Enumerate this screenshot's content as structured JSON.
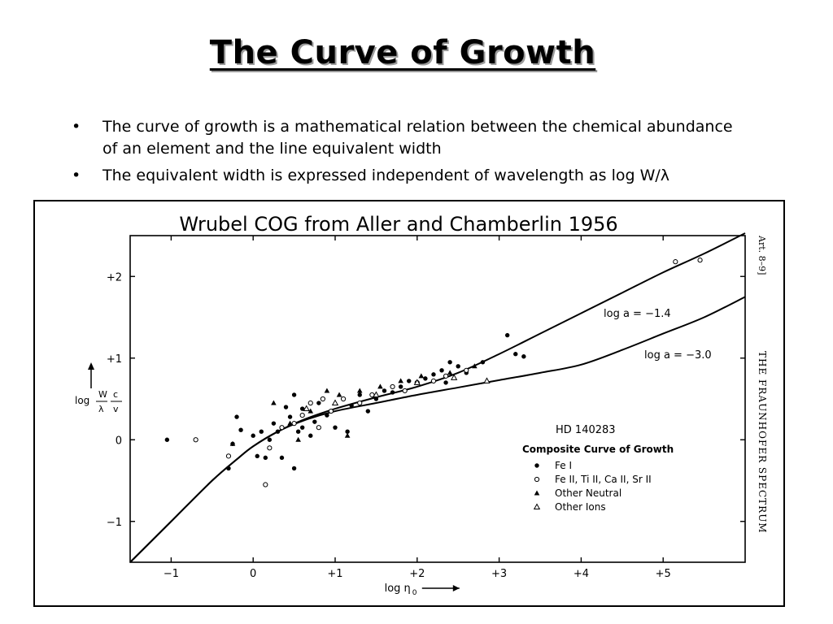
{
  "slide": {
    "title": "The Curve of Growth",
    "bullets": [
      "The curve of growth is a mathematical relation between the chemical abundance of an element and the line equivalent width",
      "The equivalent width is expressed independent of wavelength as log W/λ"
    ],
    "bullet_symbol": "•"
  },
  "figure": {
    "caption": "Wrubel COG from Aller and Chamberlin 1956",
    "side_text_art": "Art. 8–9]",
    "side_text_title": "THE FRAUNHOFER SPECTRUM"
  },
  "chart_data": {
    "type": "scatter",
    "title": "HD 140283",
    "subtitle": "Composite Curve of Growth",
    "xlabel": "log η",
    "xlabel_subscript": "0",
    "ylabel": "log W/λ c/v",
    "ylabel_parts": {
      "prefix": "log",
      "num1": "W",
      "den1": "λ",
      "num2": "c",
      "den2": "v"
    },
    "xlim": [
      -1.5,
      6.0
    ],
    "ylim": [
      -1.5,
      2.5
    ],
    "x_ticks": [
      -1,
      0,
      1,
      2,
      3,
      4,
      5
    ],
    "x_tick_labels": [
      "−1",
      "0",
      "+1",
      "+2",
      "+3",
      "+4",
      "+5"
    ],
    "y_ticks": [
      -1,
      0,
      1,
      2
    ],
    "y_tick_labels": [
      "−1",
      "0",
      "+1",
      "+2"
    ],
    "grid": false,
    "legend_position": "lower-right",
    "curves": [
      {
        "name": "log a = −1.4",
        "points": [
          [
            -1.5,
            -1.5
          ],
          [
            -1.0,
            -1.0
          ],
          [
            -0.5,
            -0.5
          ],
          [
            -0.2,
            -0.24
          ],
          [
            0.0,
            -0.08
          ],
          [
            0.3,
            0.1
          ],
          [
            0.6,
            0.24
          ],
          [
            1.0,
            0.38
          ],
          [
            1.5,
            0.52
          ],
          [
            2.0,
            0.65
          ],
          [
            2.5,
            0.82
          ],
          [
            3.0,
            1.05
          ],
          [
            3.5,
            1.3
          ],
          [
            4.0,
            1.55
          ],
          [
            4.5,
            1.8
          ],
          [
            5.0,
            2.05
          ],
          [
            5.5,
            2.28
          ],
          [
            6.0,
            2.53
          ]
        ]
      },
      {
        "name": "log a = −3.0",
        "points": [
          [
            -1.5,
            -1.5
          ],
          [
            -1.0,
            -1.0
          ],
          [
            -0.5,
            -0.5
          ],
          [
            -0.2,
            -0.24
          ],
          [
            0.0,
            -0.08
          ],
          [
            0.3,
            0.1
          ],
          [
            0.6,
            0.23
          ],
          [
            1.0,
            0.35
          ],
          [
            1.5,
            0.45
          ],
          [
            2.0,
            0.55
          ],
          [
            2.5,
            0.64
          ],
          [
            3.0,
            0.73
          ],
          [
            3.5,
            0.82
          ],
          [
            4.0,
            0.92
          ],
          [
            4.5,
            1.1
          ],
          [
            5.0,
            1.3
          ],
          [
            5.5,
            1.5
          ],
          [
            6.0,
            1.75
          ]
        ]
      }
    ],
    "series": [
      {
        "name": "Fe I",
        "marker": "filled-circle",
        "points": [
          [
            -1.05,
            0.0
          ],
          [
            -0.25,
            -0.05
          ],
          [
            -0.2,
            0.28
          ],
          [
            0.3,
            0.1
          ],
          [
            0.4,
            0.4
          ],
          [
            0.5,
            0.55
          ],
          [
            0.6,
            0.38
          ],
          [
            0.8,
            0.45
          ],
          [
            0.9,
            0.3
          ],
          [
            1.0,
            0.15
          ],
          [
            1.2,
            0.42
          ],
          [
            1.3,
            0.55
          ],
          [
            1.4,
            0.35
          ],
          [
            1.5,
            0.5
          ],
          [
            1.6,
            0.6
          ],
          [
            1.7,
            0.58
          ],
          [
            1.8,
            0.65
          ],
          [
            1.9,
            0.72
          ],
          [
            2.0,
            0.7
          ],
          [
            2.1,
            0.75
          ],
          [
            2.2,
            0.8
          ],
          [
            2.3,
            0.85
          ],
          [
            2.4,
            0.95
          ],
          [
            2.5,
            0.9
          ],
          [
            2.6,
            0.82
          ],
          [
            2.8,
            0.95
          ],
          [
            3.1,
            1.28
          ],
          [
            3.2,
            1.05
          ],
          [
            3.3,
            1.02
          ],
          [
            0.2,
            0.0
          ],
          [
            0.1,
            0.1
          ],
          [
            0.6,
            0.15
          ],
          [
            0.7,
            0.05
          ],
          [
            0.15,
            -0.22
          ],
          [
            0.5,
            -0.35
          ],
          [
            0.35,
            -0.22
          ],
          [
            -0.3,
            -0.35
          ],
          [
            -0.15,
            0.12
          ],
          [
            0.0,
            0.05
          ],
          [
            0.05,
            -0.2
          ],
          [
            1.15,
            0.1
          ],
          [
            2.35,
            0.7
          ],
          [
            0.45,
            0.28
          ],
          [
            0.55,
            0.1
          ],
          [
            0.75,
            0.22
          ],
          [
            0.25,
            0.2
          ]
        ]
      },
      {
        "name": "Fe II, Ti II, Ca II, Sr II",
        "marker": "open-circle",
        "points": [
          [
            -0.7,
            0.0
          ],
          [
            -0.3,
            -0.2
          ],
          [
            0.15,
            -0.55
          ],
          [
            0.35,
            0.15
          ],
          [
            0.6,
            0.3
          ],
          [
            0.7,
            0.45
          ],
          [
            0.85,
            0.5
          ],
          [
            0.95,
            0.35
          ],
          [
            1.1,
            0.5
          ],
          [
            1.3,
            0.45
          ],
          [
            1.45,
            0.55
          ],
          [
            1.7,
            0.65
          ],
          [
            1.85,
            0.6
          ],
          [
            2.0,
            0.7
          ],
          [
            2.2,
            0.72
          ],
          [
            2.35,
            0.78
          ],
          [
            2.6,
            0.85
          ],
          [
            0.5,
            0.2
          ],
          [
            0.8,
            0.15
          ],
          [
            0.2,
            -0.1
          ],
          [
            5.15,
            2.18
          ],
          [
            5.45,
            2.2
          ]
        ]
      },
      {
        "name": "Other Neutral",
        "marker": "filled-triangle",
        "points": [
          [
            -0.25,
            -0.05
          ],
          [
            0.45,
            0.2
          ],
          [
            0.7,
            0.35
          ],
          [
            1.05,
            0.55
          ],
          [
            1.3,
            0.6
          ],
          [
            1.55,
            0.65
          ],
          [
            1.8,
            0.72
          ],
          [
            2.05,
            0.78
          ],
          [
            2.4,
            0.82
          ],
          [
            1.15,
            0.05
          ],
          [
            0.25,
            0.45
          ],
          [
            0.9,
            0.6
          ],
          [
            2.7,
            0.9
          ],
          [
            0.55,
            0.0
          ]
        ]
      },
      {
        "name": "Other Ions",
        "marker": "open-triangle",
        "points": [
          [
            0.65,
            0.38
          ],
          [
            1.0,
            0.45
          ],
          [
            1.5,
            0.55
          ],
          [
            2.0,
            0.7
          ],
          [
            2.85,
            0.72
          ],
          [
            2.45,
            0.76
          ]
        ]
      }
    ]
  }
}
